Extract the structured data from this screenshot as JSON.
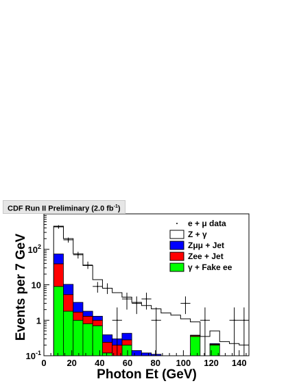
{
  "chart_data": {
    "type": "bar",
    "header_text": "CDF Run II Preliminary (2.0 fb",
    "header_sup": "-1",
    "header_close": ")",
    "xlabel": "Photon Et (GeV)",
    "ylabel": "Events per 7 GeV",
    "log_y": true,
    "xlim": [
      0,
      147
    ],
    "ylim": [
      0.1,
      1000
    ],
    "x_ticks": [
      0,
      20,
      40,
      60,
      80,
      100,
      120,
      140
    ],
    "y_ticks": [
      {
        "value": 0.1,
        "base": "10",
        "exp": "-1"
      },
      {
        "value": 1,
        "base": "1",
        "exp": ""
      },
      {
        "value": 10,
        "base": "10",
        "exp": ""
      },
      {
        "value": 100,
        "base": "10",
        "exp": "2"
      }
    ],
    "bin_edges": [
      7,
      14,
      21,
      28,
      35,
      42,
      49,
      56,
      63,
      70,
      77,
      84,
      91,
      98,
      105,
      112,
      119,
      126,
      133,
      140,
      147
    ],
    "stack": [
      {
        "name": "γ + Fake ee",
        "color": "#00ff00",
        "values": [
          9,
          1.8,
          1.0,
          0.8,
          0.7,
          0.12,
          0.1,
          0.2,
          0,
          0,
          0,
          0,
          0,
          0,
          0.35,
          0,
          0.2,
          0,
          0,
          0
        ]
      },
      {
        "name": "Zee + Jet",
        "color": "#ff0000",
        "values": [
          30,
          3.5,
          0.7,
          0.5,
          0.3,
          0.12,
          0.1,
          0.08,
          0,
          0,
          0,
          0,
          0,
          0,
          0.02,
          0,
          0.01,
          0,
          0,
          0
        ]
      },
      {
        "name": "Zμμ + Jet",
        "color": "#0000ff",
        "values": [
          35,
          5,
          1.5,
          0.5,
          0.3,
          0.15,
          0.1,
          0.15,
          0.14,
          0.12,
          0.11,
          0.1,
          0.1,
          0.1,
          0.01,
          0.1,
          0.01,
          0.1,
          0.1,
          0.1
        ]
      }
    ],
    "z_gamma": {
      "name": "Z + γ",
      "values": [
        450,
        200,
        75,
        35,
        14,
        8,
        6,
        4.5,
        3.2,
        2.6,
        2.1,
        1.6,
        1.4,
        1.1,
        0.9,
        0.35,
        0.5,
        0.25,
        0.22,
        0.2
      ]
    },
    "data_points": {
      "name": "e + μ data",
      "points": [
        {
          "x": 10.5,
          "y": 430,
          "ylo": 380,
          "yhi": 480
        },
        {
          "x": 17.5,
          "y": 185,
          "ylo": 155,
          "yhi": 215
        },
        {
          "x": 24.5,
          "y": 70,
          "ylo": 55,
          "yhi": 85
        },
        {
          "x": 31.5,
          "y": 36,
          "ylo": 28,
          "yhi": 45
        },
        {
          "x": 38.5,
          "y": 9,
          "ylo": 6,
          "yhi": 12
        },
        {
          "x": 45.5,
          "y": 8,
          "ylo": 5.5,
          "yhi": 11
        },
        {
          "x": 52.5,
          "y": 1,
          "ylo": 0.1,
          "yhi": 2.3
        },
        {
          "x": 59.5,
          "y": 4,
          "ylo": 2,
          "yhi": 6
        },
        {
          "x": 66.5,
          "y": 3,
          "ylo": 1.5,
          "yhi": 4.7
        },
        {
          "x": 73.5,
          "y": 4,
          "ylo": 2,
          "yhi": 6
        },
        {
          "x": 80.5,
          "y": 1,
          "ylo": 0.1,
          "yhi": 2.3
        },
        {
          "x": 101.5,
          "y": 3,
          "ylo": 1.5,
          "yhi": 4.7
        },
        {
          "x": 115.5,
          "y": 1,
          "ylo": 0.1,
          "yhi": 2.3
        },
        {
          "x": 136.5,
          "y": 1,
          "ylo": 0.1,
          "yhi": 2.3
        },
        {
          "x": 143.5,
          "y": 1,
          "ylo": 0.1,
          "yhi": 2.3
        }
      ]
    },
    "legend": [
      {
        "label": "e + μ data",
        "kind": "point"
      },
      {
        "label": "Z + γ",
        "kind": "box",
        "color": "#ffffff"
      },
      {
        "label": "Zμμ + Jet",
        "kind": "box",
        "color": "#0000ff"
      },
      {
        "label": "Zee + Jet",
        "kind": "box",
        "color": "#ff0000"
      },
      {
        "label": "γ + Fake ee",
        "kind": "box",
        "color": "#00ff00"
      }
    ],
    "legend_position": "top-right"
  }
}
